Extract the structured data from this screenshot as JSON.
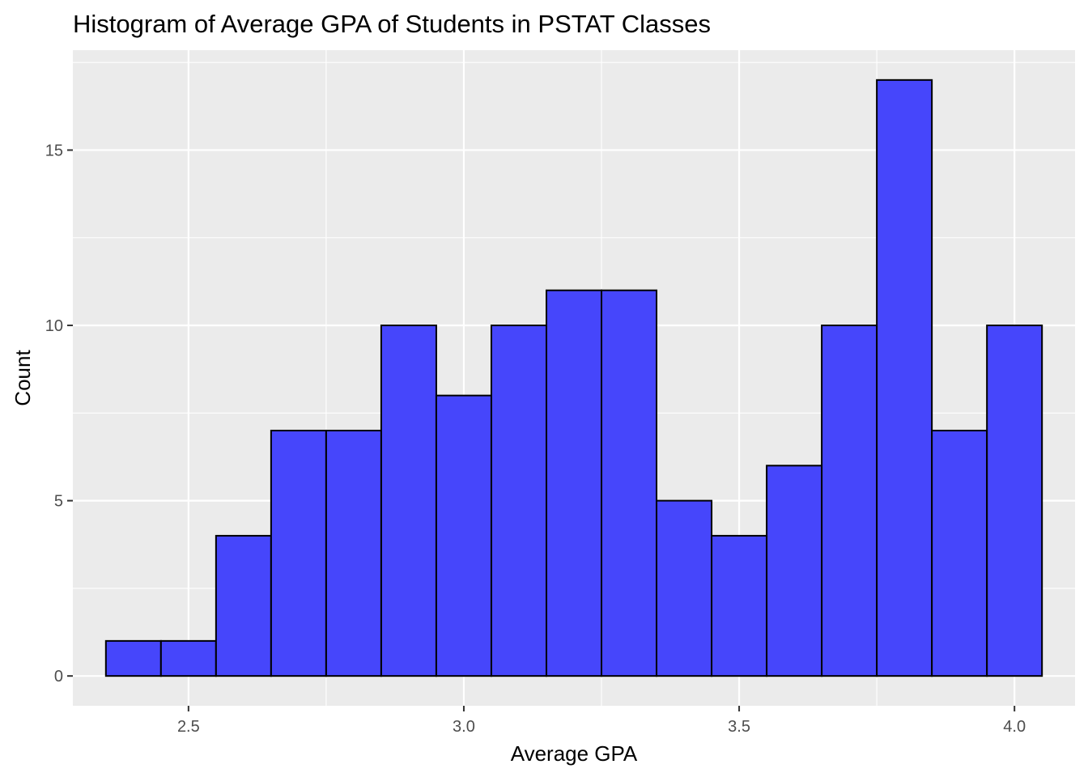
{
  "chart_data": {
    "type": "bar",
    "title": "Histogram of Average GPA of Students in PSTAT Classes",
    "xlabel": "Average GPA",
    "ylabel": "Count",
    "xlim": [
      2.29,
      4.11
    ],
    "ylim": [
      -0.85,
      17.85
    ],
    "x_ticks": [
      2.5,
      3.0,
      3.5,
      4.0
    ],
    "x_tick_labels": [
      "2.5",
      "3.0",
      "3.5",
      "4.0"
    ],
    "y_ticks": [
      0,
      5,
      10,
      15
    ],
    "y_tick_labels": [
      "0",
      "5",
      "10",
      "15"
    ],
    "grid": true,
    "bin_width": 0.1,
    "bins": [
      {
        "x0": 2.35,
        "x1": 2.45,
        "count": 1
      },
      {
        "x0": 2.45,
        "x1": 2.55,
        "count": 1
      },
      {
        "x0": 2.55,
        "x1": 2.65,
        "count": 4
      },
      {
        "x0": 2.65,
        "x1": 2.75,
        "count": 7
      },
      {
        "x0": 2.75,
        "x1": 2.85,
        "count": 7
      },
      {
        "x0": 2.85,
        "x1": 2.95,
        "count": 10
      },
      {
        "x0": 2.95,
        "x1": 3.05,
        "count": 8
      },
      {
        "x0": 3.05,
        "x1": 3.15,
        "count": 10
      },
      {
        "x0": 3.15,
        "x1": 3.25,
        "count": 11
      },
      {
        "x0": 3.25,
        "x1": 3.35,
        "count": 11
      },
      {
        "x0": 3.35,
        "x1": 3.45,
        "count": 5
      },
      {
        "x0": 3.45,
        "x1": 3.55,
        "count": 4
      },
      {
        "x0": 3.55,
        "x1": 3.65,
        "count": 6
      },
      {
        "x0": 3.65,
        "x1": 3.75,
        "count": 10
      },
      {
        "x0": 3.75,
        "x1": 3.85,
        "count": 17
      },
      {
        "x0": 3.85,
        "x1": 3.95,
        "count": 7
      },
      {
        "x0": 3.95,
        "x1": 4.05,
        "count": 10
      }
    ],
    "colors": {
      "bar_fill": "#4646fb",
      "bar_stroke": "#000000",
      "panel_bg": "#ebebeb",
      "grid": "#ffffff"
    }
  }
}
